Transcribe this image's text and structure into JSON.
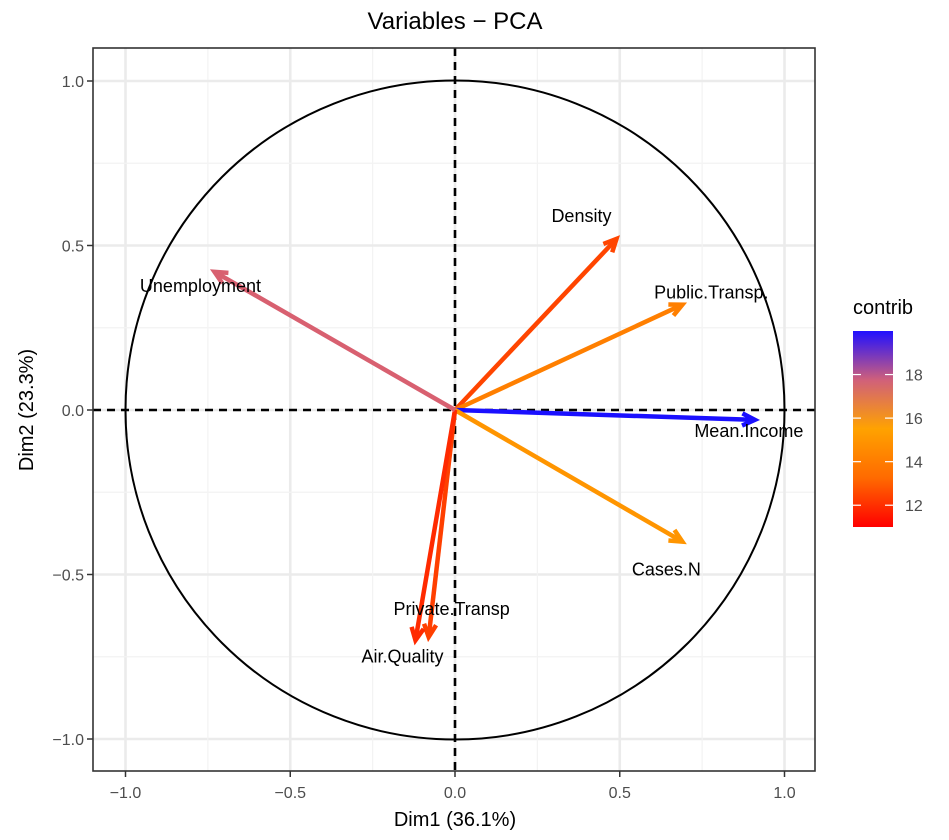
{
  "chart_data": {
    "type": "pca-variable-correlation-circle",
    "title": "Variables − PCA",
    "xlabel": "Dim1 (36.1%)",
    "ylabel": "Dim2 (23.3%)",
    "xlim": [
      -1.1,
      1.1
    ],
    "ylim": [
      -1.1,
      1.1
    ],
    "x_ticks": [
      -1.0,
      -0.5,
      0.0,
      0.5,
      1.0
    ],
    "x_tick_labels": [
      "−1.0",
      "−0.5",
      "0.0",
      "0.5",
      "1.0"
    ],
    "y_ticks": [
      -1.0,
      -0.5,
      0.0,
      0.5,
      1.0
    ],
    "y_tick_labels": [
      "−1.0",
      "−0.5",
      "0.0",
      "0.5",
      "1.0"
    ],
    "grid": true,
    "unit_circle": true,
    "legend": {
      "title": "contrib",
      "placement": "right",
      "range": [
        11,
        20
      ],
      "ticks": [
        12,
        14,
        16,
        18
      ],
      "tick_labels": [
        "12",
        "14",
        "16",
        "18"
      ],
      "colors": [
        "#ff0000",
        "#ffa500",
        "#0000ff"
      ]
    },
    "series": [
      {
        "name": "Density",
        "x": 0.49,
        "y": 0.52,
        "contrib": 11.8,
        "color": "#ff4500"
      },
      {
        "name": "Public.Transp.",
        "x": 0.69,
        "y": 0.32,
        "contrib": 13.0,
        "color": "#ff7f00"
      },
      {
        "name": "Mean.Income",
        "x": 0.91,
        "y": -0.03,
        "contrib": 20.0,
        "color": "#1a10ff"
      },
      {
        "name": "Cases.N",
        "x": 0.69,
        "y": -0.4,
        "contrib": 14.0,
        "color": "#ff9500"
      },
      {
        "name": "Private.Transp",
        "x": -0.08,
        "y": -0.69,
        "contrib": 11.6,
        "color": "#ff3f00"
      },
      {
        "name": "Air.Quality",
        "x": -0.12,
        "y": -0.7,
        "contrib": 11.3,
        "color": "#ff2a00"
      },
      {
        "name": "Unemployment",
        "x": -0.73,
        "y": 0.42,
        "contrib": 16.8,
        "color": "#d86070"
      }
    ]
  }
}
